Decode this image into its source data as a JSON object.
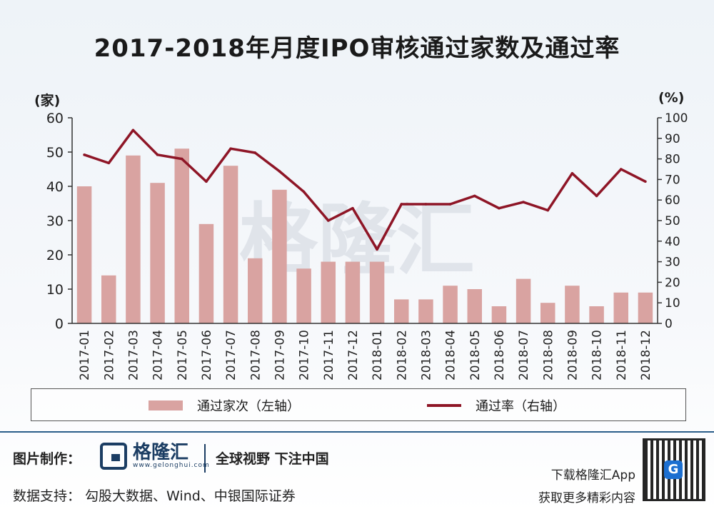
{
  "title": "2017-2018年月度IPO审核通过家数及通过率",
  "left_unit": "(家)",
  "right_unit": "(%)",
  "legend": {
    "bar_label": "通过家次（左轴）",
    "line_label": "通过率（右轴）"
  },
  "watermark": "格隆汇",
  "footer": {
    "made_by_label": "图片制作：",
    "logo_name": "格隆汇",
    "logo_domain": "www.gelonghui.com",
    "slogan": "全球视野 下注中国",
    "data_support": "数据支持： 勾股大数据、Wind、中银国际证券",
    "download": "下载格隆汇App",
    "more": "获取更多精彩内容",
    "qr_badge": "G"
  },
  "colors": {
    "bar": "#d9a3a1",
    "line": "#8e1526",
    "axis": "#333333"
  },
  "chart_data": {
    "type": "bar",
    "categories": [
      "2017-01",
      "2017-02",
      "2017-03",
      "2017-04",
      "2017-05",
      "2017-06",
      "2017-07",
      "2017-08",
      "2017-09",
      "2017-10",
      "2017-11",
      "2017-12",
      "2018-01",
      "2018-02",
      "2018-03",
      "2018-04",
      "2018-05",
      "2018-06",
      "2018-07",
      "2018-08",
      "2018-09",
      "2018-10",
      "2018-11",
      "2018-12"
    ],
    "series": [
      {
        "name": "通过家次（左轴）",
        "type": "bar",
        "axis": "left",
        "values": [
          40,
          14,
          49,
          41,
          51,
          29,
          46,
          19,
          39,
          16,
          18,
          18,
          18,
          7,
          7,
          11,
          10,
          5,
          13,
          6,
          11,
          5,
          9,
          9
        ]
      },
      {
        "name": "通过率（右轴）",
        "type": "line",
        "axis": "right",
        "values": [
          82,
          78,
          94,
          82,
          80,
          69,
          85,
          83,
          74,
          64,
          50,
          56,
          36,
          58,
          58,
          58,
          62,
          56,
          59,
          55,
          73,
          62,
          75,
          69
        ]
      }
    ],
    "left_axis": {
      "ylim": [
        0,
        60
      ],
      "ticks": [
        0,
        10,
        20,
        30,
        40,
        50,
        60
      ]
    },
    "right_axis": {
      "ylim": [
        0,
        100
      ],
      "ticks": [
        0,
        10,
        20,
        30,
        40,
        50,
        60,
        70,
        80,
        90,
        100
      ]
    },
    "grid": false,
    "legend_position": "bottom"
  }
}
